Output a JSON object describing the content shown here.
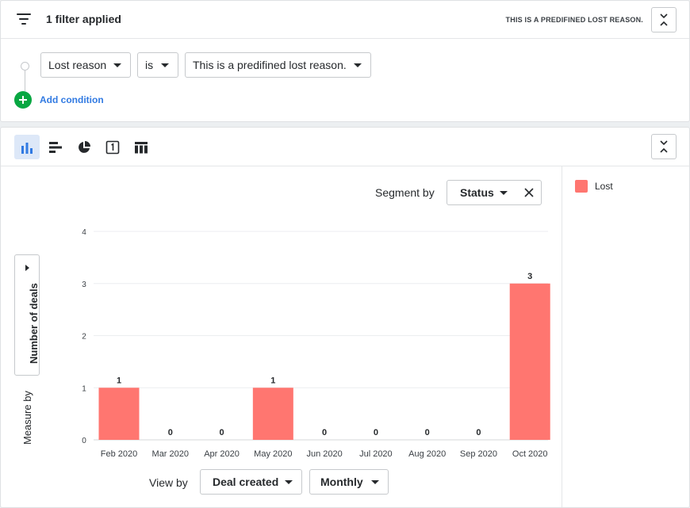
{
  "filter": {
    "title": "1 filter applied",
    "summary": "This is a predifined lost reason.",
    "condition": {
      "field": "Lost reason",
      "operator": "is",
      "value": "This is a predifined lost reason."
    },
    "add_condition_label": "Add condition",
    "collapse_icon": "collapse-icon"
  },
  "toolbar": {
    "views": [
      {
        "name": "bar-chart-icon",
        "active": true
      },
      {
        "name": "horizontal-bar-chart-icon",
        "active": false
      },
      {
        "name": "pie-chart-icon",
        "active": false
      },
      {
        "name": "scorecard-icon",
        "active": false
      },
      {
        "name": "table-icon",
        "active": false
      }
    ]
  },
  "segment": {
    "label": "Segment by",
    "value": "Status"
  },
  "measure": {
    "label": "Measure by",
    "value": "Number of deals"
  },
  "view_by": {
    "label": "View by",
    "field": "Deal created",
    "interval": "Monthly"
  },
  "legend": [
    {
      "label": "Lost",
      "color": "#ff7670"
    }
  ],
  "colors": {
    "accent": "#317ae2",
    "add": "#08a742",
    "bar": "#ff7670"
  },
  "chart_data": {
    "type": "bar",
    "categories": [
      "Feb 2020",
      "Mar 2020",
      "Apr 2020",
      "May 2020",
      "Jun 2020",
      "Jul 2020",
      "Aug 2020",
      "Sep 2020",
      "Oct 2020"
    ],
    "series": [
      {
        "name": "Lost",
        "values": [
          1,
          0,
          0,
          1,
          0,
          0,
          0,
          0,
          3
        ]
      }
    ],
    "data_labels": [
      "1",
      "0",
      "0",
      "1",
      "0",
      "0",
      "0",
      "0",
      "3"
    ],
    "yticks": [
      0,
      1,
      2,
      3,
      4
    ],
    "ylim": [
      0,
      4
    ],
    "xlabel": "",
    "ylabel": "",
    "grid": true,
    "legend_position": "right"
  }
}
